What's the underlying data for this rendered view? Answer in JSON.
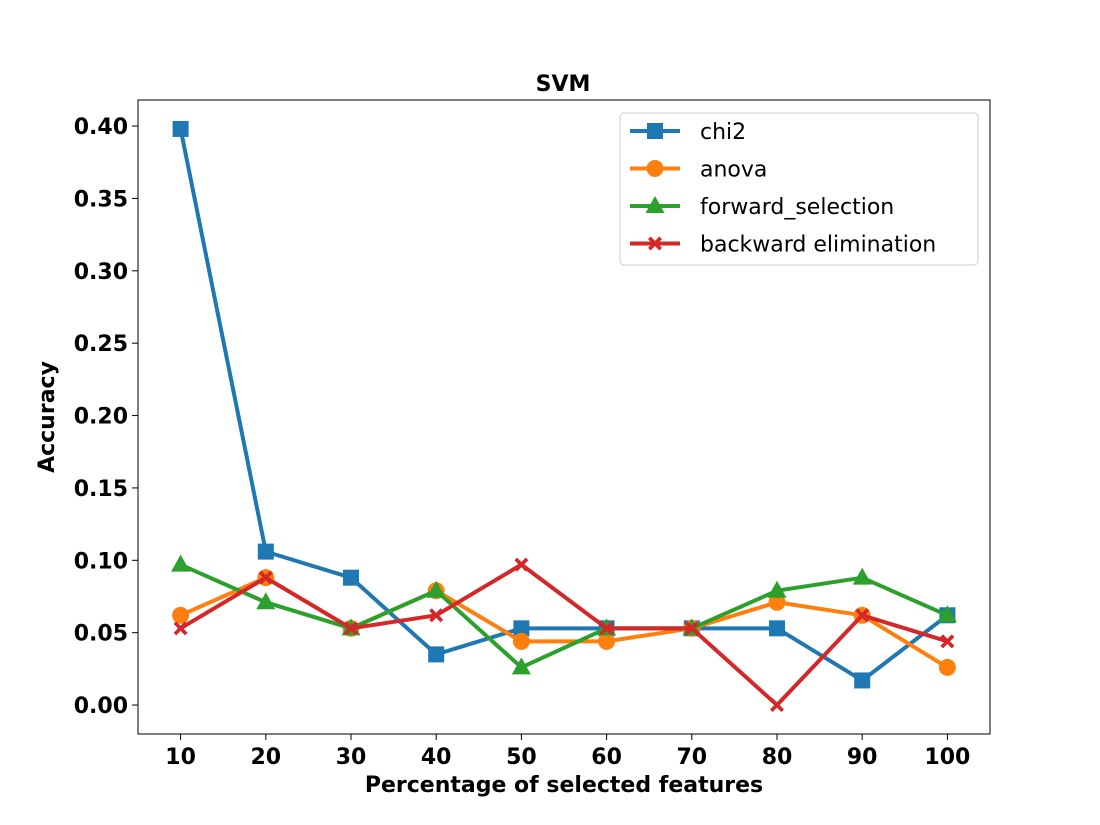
{
  "chart_data": {
    "type": "line",
    "title": "SVM",
    "xlabel": "Percentage of selected features",
    "ylabel": "Accuracy",
    "x": [
      10,
      20,
      30,
      40,
      50,
      60,
      70,
      80,
      90,
      100
    ],
    "xlim": [
      5,
      105
    ],
    "ylim": [
      -0.02,
      0.418
    ],
    "yticks": [
      0.0,
      0.05,
      0.1,
      0.15,
      0.2,
      0.25,
      0.3,
      0.35,
      0.4
    ],
    "ytick_labels": [
      "0.00",
      "0.05",
      "0.10",
      "0.15",
      "0.20",
      "0.25",
      "0.30",
      "0.35",
      "0.40"
    ],
    "xtick_labels": [
      "10",
      "20",
      "30",
      "40",
      "50",
      "60",
      "70",
      "80",
      "90",
      "100"
    ],
    "grid": false,
    "legend_position": "top-right",
    "series": [
      {
        "name": "chi2",
        "color": "#1f77b4",
        "marker": "square",
        "values": [
          0.398,
          0.106,
          0.088,
          0.035,
          0.053,
          0.053,
          0.053,
          0.053,
          0.017,
          0.062
        ]
      },
      {
        "name": "anova",
        "color": "#ff7f0e",
        "marker": "circle",
        "values": [
          0.062,
          0.088,
          0.053,
          0.079,
          0.044,
          0.044,
          0.053,
          0.071,
          0.062,
          0.026
        ]
      },
      {
        "name": "forward_selection",
        "color": "#2ca02c",
        "marker": "triangle",
        "values": [
          0.097,
          0.071,
          0.053,
          0.079,
          0.026,
          0.053,
          0.053,
          0.079,
          0.088,
          0.062
        ]
      },
      {
        "name": "backward elimination",
        "color": "#d62728",
        "marker": "x",
        "values": [
          0.053,
          0.088,
          0.053,
          0.062,
          0.097,
          0.053,
          0.053,
          0.0,
          0.062,
          0.044
        ]
      }
    ]
  }
}
